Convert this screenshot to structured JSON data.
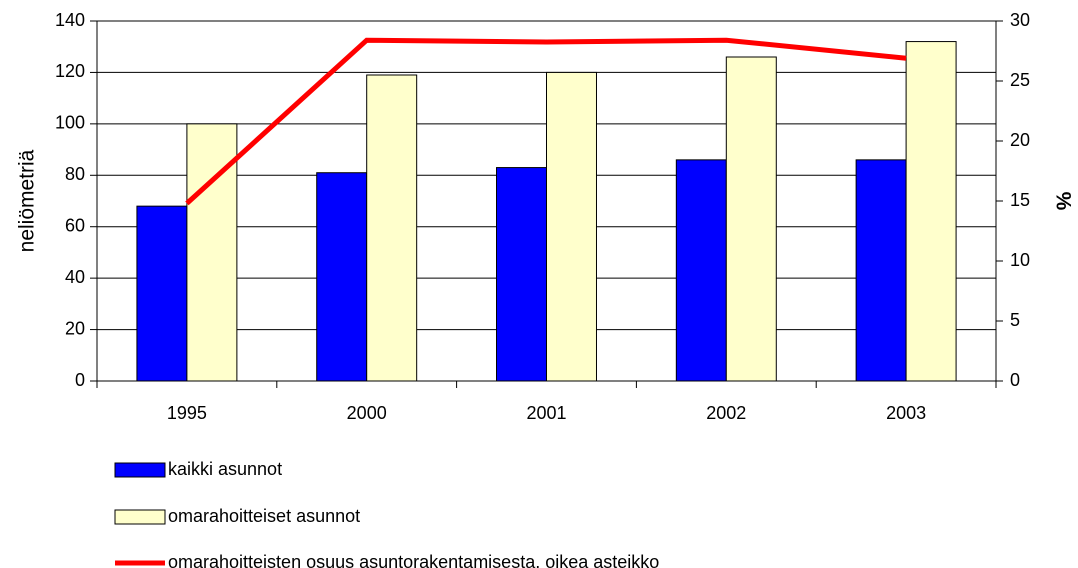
{
  "chart_data": {
    "type": "bar",
    "categories": [
      "1995",
      "2000",
      "2001",
      "2002",
      "2003"
    ],
    "ylabel": "neliömetriä",
    "y2label": "%",
    "ylim": [
      0,
      140
    ],
    "yticks": [
      0,
      20,
      40,
      60,
      80,
      100,
      120,
      140
    ],
    "y2lim": [
      0,
      30
    ],
    "y2ticks": [
      0,
      5,
      10,
      15,
      20,
      25,
      30
    ],
    "grid": true,
    "legend": "bottom",
    "series": [
      {
        "name": "kaikki asunnot",
        "type": "bar",
        "color": "#0000ff",
        "values": [
          68,
          81,
          83,
          86,
          86
        ]
      },
      {
        "name": "omarahoitteiset asunnot",
        "type": "bar",
        "color": "#ffffcc",
        "values": [
          100,
          119,
          120,
          126,
          132
        ]
      },
      {
        "name": "omarahoitteisten osuus asuntorakentamisesta, oikea asteikko",
        "type": "line",
        "axis": "y2",
        "color": "#ff0000",
        "values": [
          14.8,
          28.4,
          28.25,
          28.4,
          26.9
        ]
      }
    ]
  }
}
